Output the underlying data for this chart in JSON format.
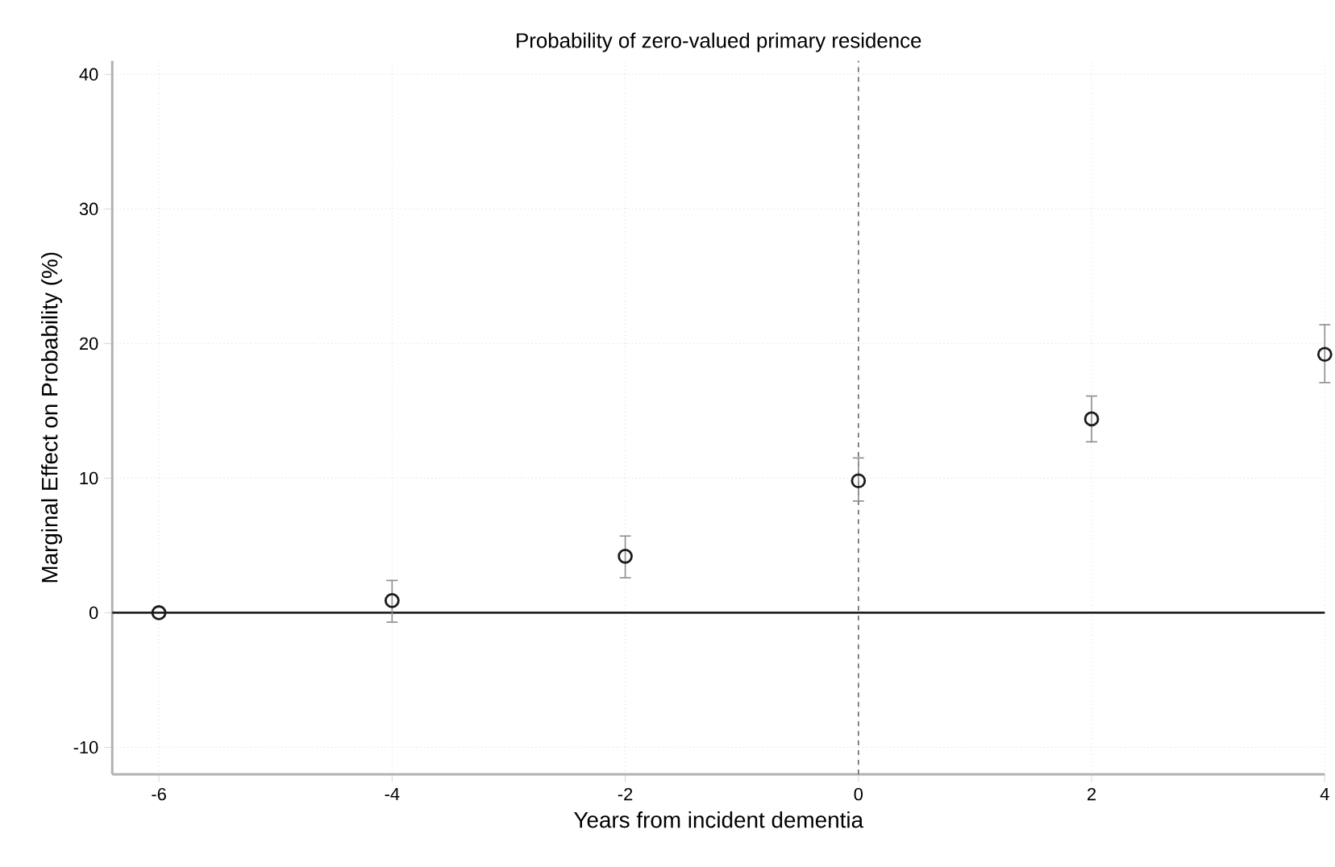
{
  "chart_data": {
    "type": "scatter",
    "title": "Probability of zero-valued primary residence",
    "xlabel": "Years from incident dementia",
    "ylabel": "Marginal Effect on Probability (%)",
    "x": [
      -6,
      -4,
      -2,
      0,
      2,
      4
    ],
    "values": [
      0,
      0.9,
      4.2,
      9.8,
      14.4,
      19.2
    ],
    "errors": [
      null,
      [
        -0.7,
        2.4
      ],
      [
        2.6,
        5.7
      ],
      [
        8.3,
        11.5
      ],
      [
        12.7,
        16.1
      ],
      [
        17.1,
        21.4
      ]
    ],
    "color": "#1a1a1a",
    "marker": "circle",
    "grid": true,
    "xlim": [
      -6.4,
      4
    ],
    "ylim": [
      -12,
      41
    ],
    "xticks": [
      -6,
      -4,
      -2,
      0,
      2,
      4
    ],
    "yticks": [
      -10,
      0,
      10,
      20,
      30,
      40
    ],
    "ref_lines": [
      {
        "axis": "x",
        "value": 0,
        "line_style": "dashed",
        "color": "#666666"
      },
      {
        "axis": "y",
        "value": 0,
        "line_style": "solid",
        "color": "#222222"
      }
    ]
  }
}
